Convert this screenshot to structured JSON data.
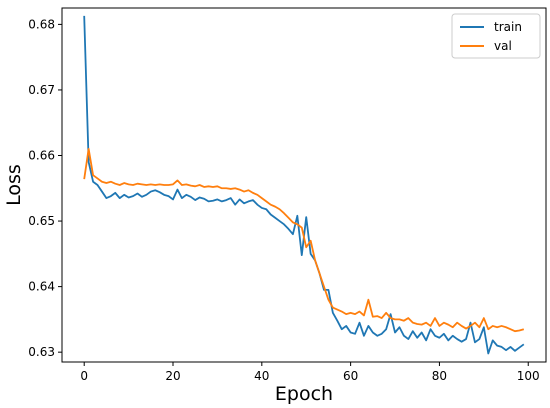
{
  "chart_data": {
    "type": "line",
    "title": "",
    "xlabel": "Epoch",
    "ylabel": "Loss",
    "xlim": [
      -5,
      104
    ],
    "ylim": [
      0.6285,
      0.6825
    ],
    "xticks": [
      0,
      20,
      40,
      60,
      80,
      100
    ],
    "yticks": [
      0.63,
      0.64,
      0.65,
      0.66,
      0.67,
      0.68
    ],
    "ytick_labels": [
      "0.63",
      "0.64",
      "0.65",
      "0.66",
      "0.67",
      "0.68"
    ],
    "xtick_labels": [
      "0",
      "20",
      "40",
      "60",
      "80",
      "100"
    ],
    "grid": false,
    "legend_position": "top-right",
    "x": [
      0,
      1,
      2,
      3,
      4,
      5,
      6,
      7,
      8,
      9,
      10,
      11,
      12,
      13,
      14,
      15,
      16,
      17,
      18,
      19,
      20,
      21,
      22,
      23,
      24,
      25,
      26,
      27,
      28,
      29,
      30,
      31,
      32,
      33,
      34,
      35,
      36,
      37,
      38,
      39,
      40,
      41,
      42,
      43,
      44,
      45,
      46,
      47,
      48,
      49,
      50,
      51,
      52,
      53,
      54,
      55,
      56,
      57,
      58,
      59,
      60,
      61,
      62,
      63,
      64,
      65,
      66,
      67,
      68,
      69,
      70,
      71,
      72,
      73,
      74,
      75,
      76,
      77,
      78,
      79,
      80,
      81,
      82,
      83,
      84,
      85,
      86,
      87,
      88,
      89,
      90,
      91,
      92,
      93,
      94,
      95,
      96,
      97,
      98,
      99
    ],
    "series": [
      {
        "name": "train",
        "color": "#1f77b4",
        "values": [
          0.6813,
          0.659,
          0.656,
          0.6555,
          0.6545,
          0.6535,
          0.6538,
          0.6543,
          0.6535,
          0.654,
          0.6536,
          0.6538,
          0.6542,
          0.6537,
          0.654,
          0.6545,
          0.6547,
          0.6544,
          0.654,
          0.6538,
          0.6533,
          0.6548,
          0.6535,
          0.654,
          0.6537,
          0.6532,
          0.6536,
          0.6534,
          0.653,
          0.6531,
          0.6533,
          0.653,
          0.6532,
          0.6535,
          0.6525,
          0.6533,
          0.6527,
          0.653,
          0.6532,
          0.6525,
          0.652,
          0.6518,
          0.651,
          0.6505,
          0.65,
          0.6495,
          0.6488,
          0.648,
          0.6508,
          0.6448,
          0.6506,
          0.645,
          0.644,
          0.642,
          0.6395,
          0.6395,
          0.636,
          0.6348,
          0.6335,
          0.634,
          0.633,
          0.6328,
          0.6345,
          0.6325,
          0.634,
          0.633,
          0.6325,
          0.6328,
          0.6335,
          0.6358,
          0.633,
          0.6338,
          0.6325,
          0.632,
          0.6332,
          0.6322,
          0.633,
          0.6318,
          0.6335,
          0.6325,
          0.6322,
          0.6328,
          0.6318,
          0.6325,
          0.632,
          0.6316,
          0.632,
          0.6345,
          0.6315,
          0.632,
          0.6338,
          0.6298,
          0.6318,
          0.631,
          0.6308,
          0.6303,
          0.6308,
          0.6302,
          0.6307,
          0.6312
        ]
      },
      {
        "name": "val",
        "color": "#ff7f0e",
        "values": [
          0.6564,
          0.661,
          0.657,
          0.6565,
          0.656,
          0.6558,
          0.656,
          0.6557,
          0.6555,
          0.6558,
          0.6556,
          0.6555,
          0.6557,
          0.6556,
          0.6555,
          0.6556,
          0.6555,
          0.6556,
          0.6555,
          0.6555,
          0.6556,
          0.6562,
          0.6555,
          0.6556,
          0.6554,
          0.6553,
          0.6555,
          0.6552,
          0.6553,
          0.6552,
          0.6553,
          0.655,
          0.655,
          0.6549,
          0.655,
          0.6548,
          0.6545,
          0.6547,
          0.6543,
          0.654,
          0.6535,
          0.653,
          0.6525,
          0.6522,
          0.6518,
          0.6512,
          0.6505,
          0.6498,
          0.6495,
          0.649,
          0.646,
          0.647,
          0.644,
          0.642,
          0.64,
          0.638,
          0.6368,
          0.6365,
          0.6362,
          0.6358,
          0.636,
          0.6358,
          0.6362,
          0.6356,
          0.638,
          0.6354,
          0.6355,
          0.6352,
          0.636,
          0.6352,
          0.635,
          0.635,
          0.6348,
          0.6352,
          0.6345,
          0.6343,
          0.6342,
          0.6345,
          0.634,
          0.6352,
          0.634,
          0.6345,
          0.6342,
          0.6338,
          0.6345,
          0.634,
          0.6336,
          0.634,
          0.6345,
          0.6338,
          0.6352,
          0.6335,
          0.634,
          0.6338,
          0.634,
          0.6338,
          0.6335,
          0.6332,
          0.6333,
          0.6335
        ]
      }
    ]
  }
}
